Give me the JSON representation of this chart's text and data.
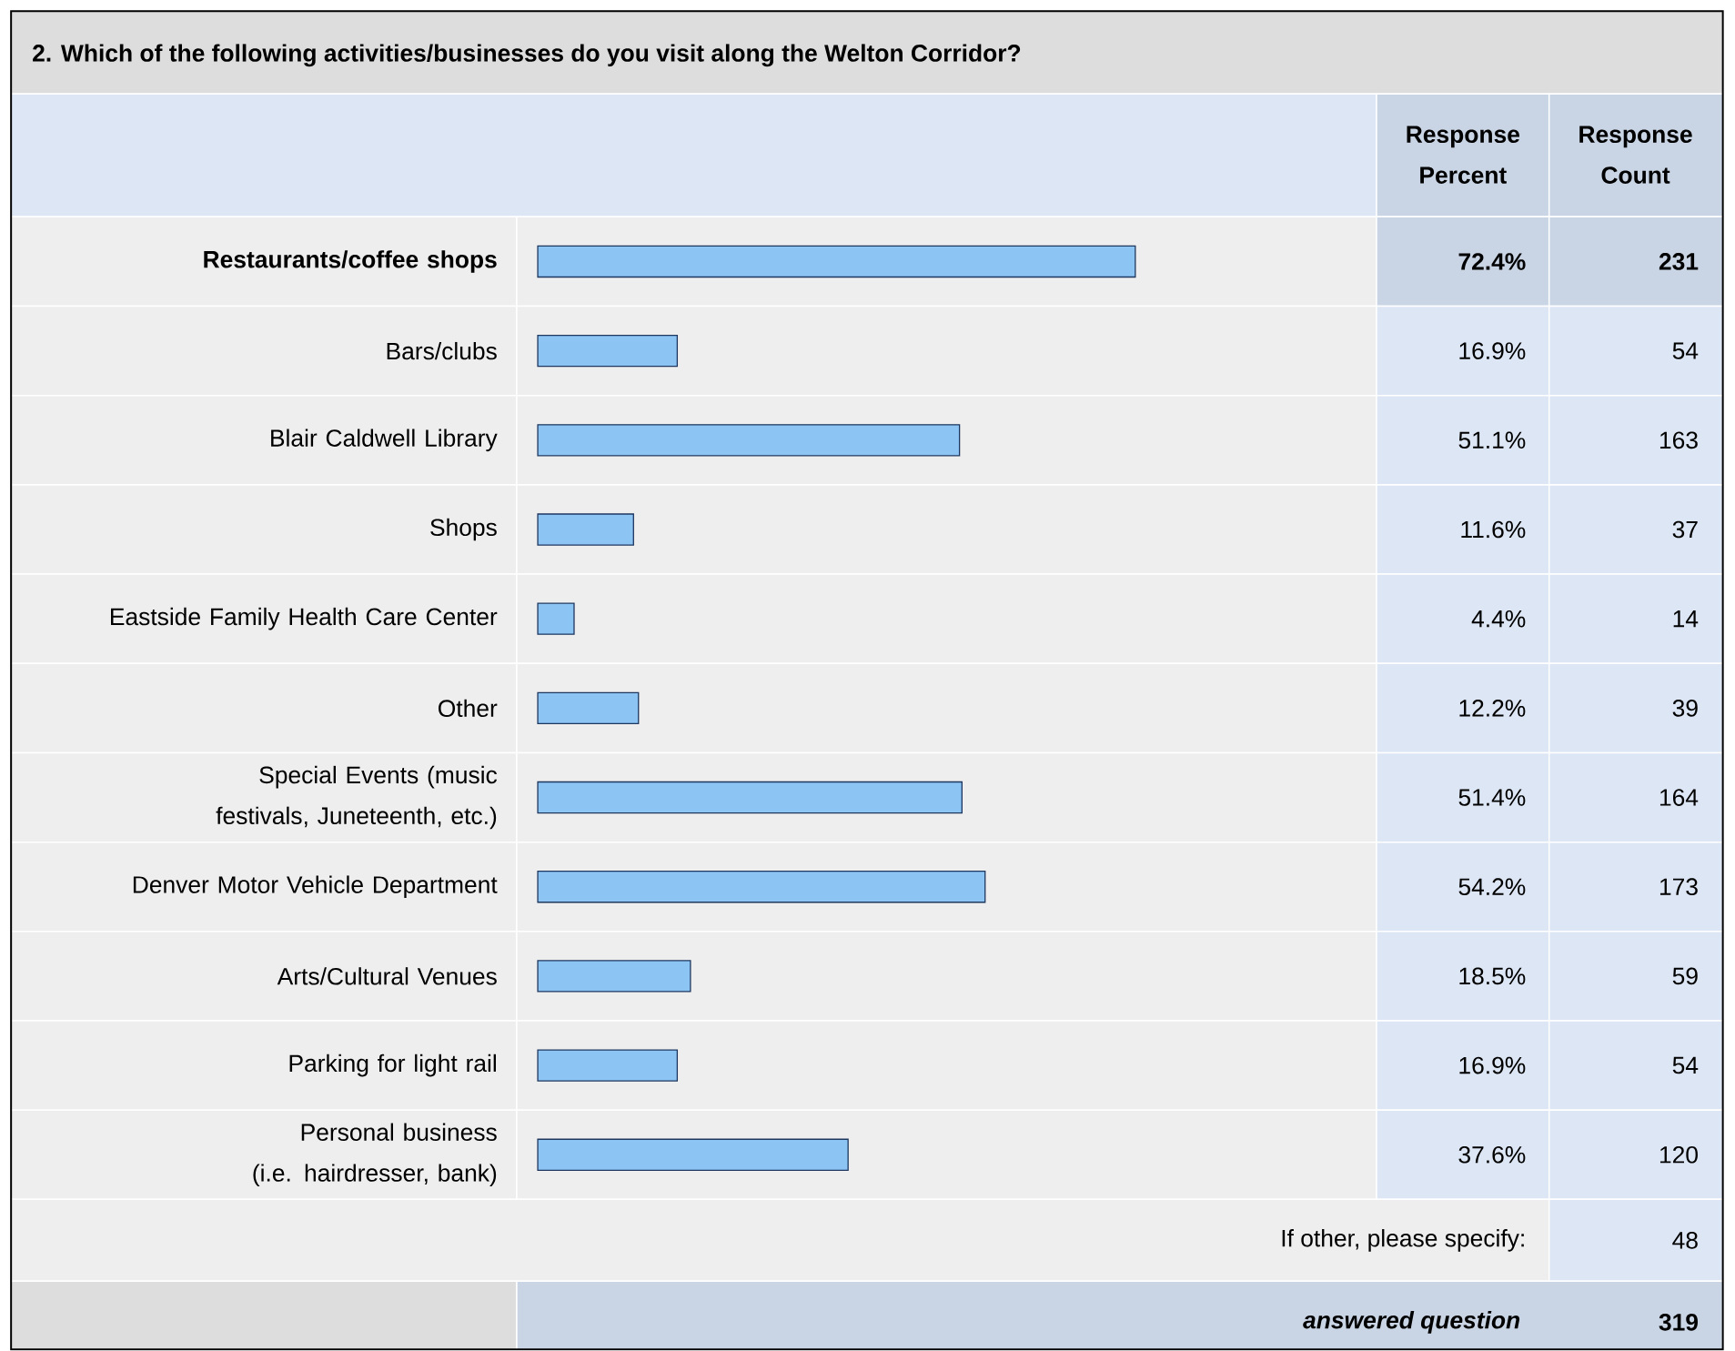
{
  "chart_data": {
    "type": "bar",
    "orientation": "horizontal",
    "title": "2. Which of the following activities/businesses do you visit along the Welton Corridor?",
    "categories": [
      "Restaurants/coffee shops",
      "Bars/clubs",
      "Blair Caldwell Library",
      "Shops",
      "Eastside Family Health Care Center",
      "Other",
      "Special Events (music festivals, Juneteenth, etc.)",
      "Denver Motor Vehicle Department",
      "Arts/Cultural Venues",
      "Parking for light rail",
      "Personal business (i.e. hairdresser, bank)"
    ],
    "values": [
      72.4,
      16.9,
      51.1,
      11.6,
      4.4,
      12.2,
      51.4,
      54.2,
      18.5,
      16.9,
      37.6
    ],
    "value_labels": [
      "72.4%",
      "16.9%",
      "51.1%",
      "11.6%",
      "4.4%",
      "12.2%",
      "51.4%",
      "54.2%",
      "18.5%",
      "16.9%",
      "37.6%"
    ],
    "color": "#8cc4f4",
    "tick_labels": "y",
    "annotations": [
      "Response Percent",
      "Response Count",
      "If other, please specify:",
      "48",
      "answered question",
      "319",
      "231",
      "54",
      "163",
      "37",
      "14",
      "39",
      "164",
      "173",
      "59",
      "54",
      "120"
    ]
  }
}
